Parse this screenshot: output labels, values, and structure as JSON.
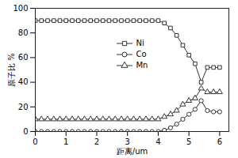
{
  "chart_data": {
    "type": "line",
    "xlabel": "距离/um",
    "ylabel": "原子比 %",
    "x": [
      0,
      0.2,
      0.4,
      0.6,
      0.8,
      1.0,
      1.2,
      1.4,
      1.6,
      1.8,
      2.0,
      2.2,
      2.4,
      2.6,
      2.8,
      3.0,
      3.2,
      3.4,
      3.6,
      3.8,
      4.0,
      4.2,
      4.4,
      4.6,
      4.8,
      5.0,
      5.2,
      5.4,
      5.6,
      5.8,
      6.0
    ],
    "series": [
      {
        "name": "Ni",
        "color": "#333333",
        "marker": "square",
        "values": [
          90,
          90,
          90,
          90,
          90,
          90,
          90,
          90,
          90,
          90,
          90,
          90,
          90,
          90,
          90,
          90,
          90,
          90,
          90,
          90,
          90,
          88,
          84,
          78,
          70,
          62,
          55,
          40,
          52,
          52,
          52
        ]
      },
      {
        "name": "Co",
        "color": "#333333",
        "marker": "circle",
        "values": [
          0,
          0,
          0,
          0,
          0,
          0,
          0,
          0,
          0,
          0,
          0,
          0,
          0,
          0,
          0,
          0,
          0,
          0,
          0,
          0,
          0,
          1,
          3,
          6,
          10,
          14,
          18,
          25,
          17,
          16,
          16
        ]
      },
      {
        "name": "Mn",
        "color": "#333333",
        "marker": "triangle",
        "values": [
          10,
          10,
          10,
          10,
          10,
          10,
          10,
          10,
          10,
          10,
          10,
          10,
          10,
          10,
          10,
          10,
          10,
          10,
          10,
          10,
          10,
          12,
          14,
          17,
          22,
          25,
          27,
          35,
          32,
          32,
          32
        ]
      }
    ],
    "xlim": [
      0,
      6.3
    ],
    "xticks": [
      0,
      1,
      2,
      3,
      4,
      5,
      6
    ],
    "ylim": [
      0,
      100
    ],
    "yticks": [
      0,
      20,
      40,
      60,
      80,
      100
    ],
    "grid": false,
    "legend": "right"
  }
}
